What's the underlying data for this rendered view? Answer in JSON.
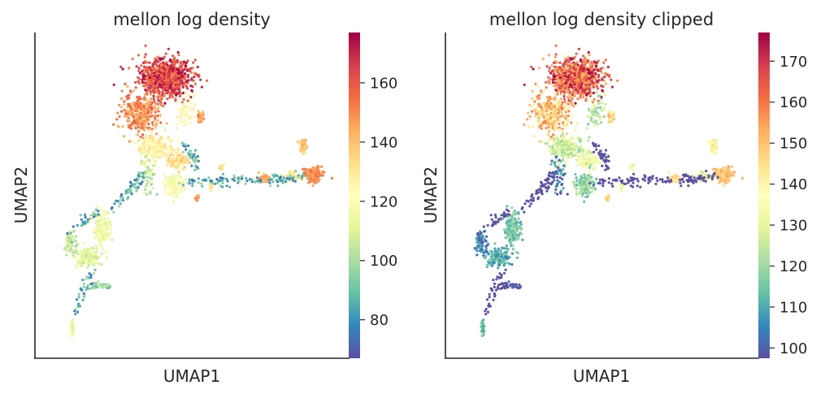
{
  "chart_data": [
    {
      "type": "scatter",
      "title": "mellon log density",
      "xlabel": "UMAP1",
      "ylabel": "UMAP2",
      "x_ticks": [],
      "y_ticks": [],
      "colormap": "Spectral_r",
      "colorbar": {
        "range": [
          67,
          177
        ],
        "ticks": [
          80,
          100,
          120,
          140,
          160
        ]
      },
      "grid": false,
      "clusters": [
        {
          "center": [
            -1.5,
            8.5
          ],
          "spread": [
            1.25,
            0.85
          ],
          "n": 900,
          "density": [
            150,
            177
          ]
        },
        {
          "center": [
            -2.8,
            6.6
          ],
          "spread": [
            0.9,
            0.9
          ],
          "n": 320,
          "density": [
            138,
            160
          ]
        },
        {
          "center": [
            -0.4,
            6.6
          ],
          "spread": [
            0.4,
            1.0
          ],
          "n": 60,
          "density": [
            115,
            130
          ]
        },
        {
          "center": [
            0.4,
            6.4
          ],
          "spread": [
            0.14,
            0.3
          ],
          "n": 40,
          "density": [
            140,
            155
          ]
        },
        {
          "center": [
            -2.0,
            4.8
          ],
          "spread": [
            0.9,
            0.6
          ],
          "n": 260,
          "density": [
            118,
            135
          ]
        },
        {
          "center": [
            -0.8,
            4.1
          ],
          "spread": [
            0.5,
            0.35
          ],
          "n": 90,
          "density": [
            128,
            140
          ]
        },
        {
          "center": [
            -1.0,
            2.9
          ],
          "spread": [
            0.45,
            0.55
          ],
          "n": 170,
          "density": [
            112,
            126
          ]
        },
        {
          "center": [
            -2.4,
            3.3
          ],
          "spread": [
            0.35,
            0.8
          ],
          "n": 50,
          "density": [
            95,
            115
          ]
        },
        {
          "center": [
            -4.9,
            0.6
          ],
          "spread": [
            0.4,
            0.9
          ],
          "n": 170,
          "density": [
            108,
            122
          ]
        },
        {
          "center": [
            -5.7,
            -0.9
          ],
          "spread": [
            0.6,
            0.5
          ],
          "n": 140,
          "density": [
            104,
            118
          ]
        },
        {
          "center": [
            -6.6,
            -0.2
          ],
          "spread": [
            0.3,
            0.45
          ],
          "n": 70,
          "density": [
            98,
            112
          ]
        },
        {
          "center": [
            -5.0,
            -2.4
          ],
          "spread": [
            0.6,
            0.15
          ],
          "n": 50,
          "density": [
            88,
            104
          ]
        },
        {
          "center": [
            -6.5,
            -4.6
          ],
          "spread": [
            0.12,
            0.4
          ],
          "n": 30,
          "density": [
            108,
            120
          ]
        },
        {
          "center": [
            1.5,
            3.8
          ],
          "spread": [
            0.12,
            0.12
          ],
          "n": 22,
          "density": [
            128,
            136
          ]
        },
        {
          "center": [
            0.2,
            2.2
          ],
          "spread": [
            0.1,
            0.1
          ],
          "n": 14,
          "density": [
            140,
            150
          ]
        },
        {
          "center": [
            1.0,
            2.8
          ],
          "spread": [
            0.1,
            0.15
          ],
          "n": 14,
          "density": [
            128,
            134
          ]
        },
        {
          "center": [
            3.8,
            3.2
          ],
          "spread": [
            0.2,
            0.18
          ],
          "n": 60,
          "density": [
            140,
            150
          ]
        },
        {
          "center": [
            5.4,
            3.3
          ],
          "spread": [
            0.45,
            0.18
          ],
          "n": 80,
          "density": [
            122,
            135
          ]
        },
        {
          "center": [
            6.5,
            3.4
          ],
          "spread": [
            0.42,
            0.35
          ],
          "n": 200,
          "density": [
            145,
            155
          ]
        },
        {
          "center": [
            5.9,
            4.9
          ],
          "spread": [
            0.22,
            0.3
          ],
          "n": 60,
          "density": [
            130,
            146
          ]
        }
      ]
    },
    {
      "type": "scatter",
      "title": "mellon log density clipped",
      "xlabel": "UMAP1",
      "ylabel": "UMAP2",
      "x_ticks": [],
      "y_ticks": [],
      "colormap": "Spectral_r",
      "colorbar": {
        "range": [
          97.5,
          177
        ],
        "ticks": [
          100,
          110,
          120,
          130,
          140,
          150,
          160,
          170
        ]
      },
      "clip": [
        97.5,
        177
      ],
      "grid": false
    }
  ]
}
